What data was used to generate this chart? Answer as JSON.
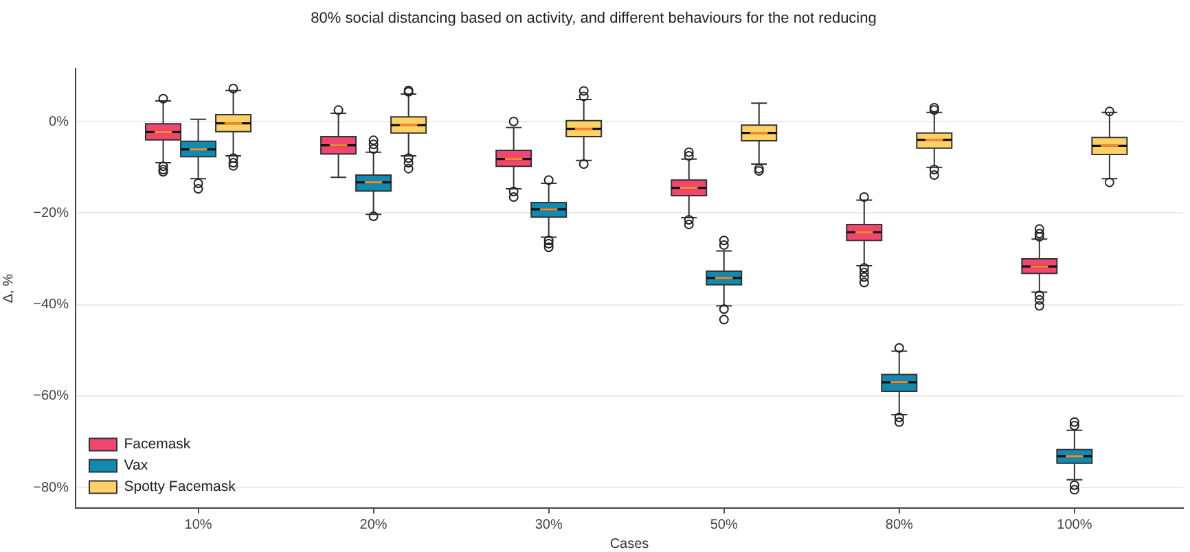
{
  "chart_data": {
    "type": "box",
    "title": "80% social distancing based on activity, and different behaviours for the not reducing",
    "xlabel": "Cases",
    "ylabel": "Δ, %",
    "categories": [
      "10%",
      "20%",
      "30%",
      "50%",
      "80%",
      "100%"
    ],
    "series": [
      {
        "name": "Facemask",
        "color": "#ef476f",
        "boxes": [
          {
            "low": -9.0,
            "q1": -4.0,
            "median": -2.3,
            "q3": -0.5,
            "high": 4.5,
            "outliers": [
              5.0,
              -9.8,
              -10.5,
              -11.0
            ]
          },
          {
            "low": -12.2,
            "q1": -7.1,
            "median": -5.2,
            "q3": -3.3,
            "high": 1.8,
            "outliers": [
              2.5
            ]
          },
          {
            "low": -14.7,
            "q1": -9.8,
            "median": -8.2,
            "q3": -6.3,
            "high": -1.3,
            "outliers": [
              0.0,
              -15.3,
              -16.5
            ]
          },
          {
            "low": -21.0,
            "q1": -16.2,
            "median": -14.5,
            "q3": -12.8,
            "high": -8.2,
            "outliers": [
              -6.7,
              -7.5,
              -21.5,
              -22.5
            ]
          },
          {
            "low": -31.5,
            "q1": -26.0,
            "median": -24.2,
            "q3": -22.5,
            "high": -17.2,
            "outliers": [
              -16.5,
              -32.0,
              -33.0,
              -34.0,
              -35.2
            ]
          },
          {
            "low": -37.3,
            "q1": -33.2,
            "median": -31.7,
            "q3": -30.0,
            "high": -25.7,
            "outliers": [
              -23.5,
              -24.5,
              -25.2,
              -38.0,
              -39.0,
              -40.3
            ]
          }
        ]
      },
      {
        "name": "Vax",
        "color": "#118ab2",
        "boxes": [
          {
            "low": -12.5,
            "q1": -7.7,
            "median": -6.1,
            "q3": -4.3,
            "high": 0.5,
            "outliers": [
              -13.5,
              -14.7
            ]
          },
          {
            "low": -20.3,
            "q1": -15.2,
            "median": -13.3,
            "q3": -11.7,
            "high": -6.7,
            "outliers": [
              -4.1,
              -5.0,
              -6.0,
              -20.7
            ]
          },
          {
            "low": -25.3,
            "q1": -20.9,
            "median": -19.2,
            "q3": -17.7,
            "high": -13.5,
            "outliers": [
              -12.8,
              -26.0,
              -26.7,
              -27.5
            ]
          },
          {
            "low": -40.3,
            "q1": -35.7,
            "median": -34.2,
            "q3": -32.7,
            "high": -28.3,
            "outliers": [
              -26.0,
              -27.0,
              -41.0,
              -43.3
            ]
          },
          {
            "low": -64.1,
            "q1": -59.0,
            "median": -57.0,
            "q3": -55.3,
            "high": -50.2,
            "outliers": [
              -49.5,
              -64.7,
              -65.7
            ]
          },
          {
            "low": -78.3,
            "q1": -74.7,
            "median": -73.2,
            "q3": -71.7,
            "high": -67.5,
            "outliers": [
              -65.7,
              -66.5,
              -79.5,
              -80.5
            ]
          }
        ]
      },
      {
        "name": "Spotty Facemask",
        "color": "#ffd166",
        "boxes": [
          {
            "low": -7.5,
            "q1": -2.2,
            "median": -0.4,
            "q3": 1.5,
            "high": 6.8,
            "outliers": [
              7.2,
              -8.0,
              -9.0,
              -9.7
            ]
          },
          {
            "low": -7.5,
            "q1": -2.5,
            "median": -0.8,
            "q3": 1.0,
            "high": 6.0,
            "outliers": [
              6.5,
              6.8,
              -8.0,
              -9.0,
              -10.3
            ]
          },
          {
            "low": -8.5,
            "q1": -3.3,
            "median": -1.6,
            "q3": 0.2,
            "high": 4.8,
            "outliers": [
              5.5,
              6.7,
              -9.3
            ]
          },
          {
            "low": -9.3,
            "q1": -4.2,
            "median": -2.5,
            "q3": -0.8,
            "high": 4.0,
            "outliers": [
              -10.3,
              -10.8
            ]
          },
          {
            "low": -10.0,
            "q1": -5.8,
            "median": -4.0,
            "q3": -2.5,
            "high": 2.0,
            "outliers": [
              2.5,
              3.0,
              -10.5,
              -11.7
            ]
          },
          {
            "low": -12.5,
            "q1": -7.2,
            "median": -5.3,
            "q3": -3.5,
            "high": 2.0,
            "outliers": [
              2.2,
              -13.3
            ]
          }
        ]
      }
    ],
    "ylim": [
      -84.5,
      11.5
    ],
    "yticks": [
      {
        "value": 0,
        "label": "0%"
      },
      {
        "value": -20,
        "label": "−20%"
      },
      {
        "value": -40,
        "label": "−40%"
      },
      {
        "value": -60,
        "label": "−60%"
      },
      {
        "value": -80,
        "label": "−80%"
      }
    ],
    "grid": "y",
    "legend": "bottom left"
  }
}
